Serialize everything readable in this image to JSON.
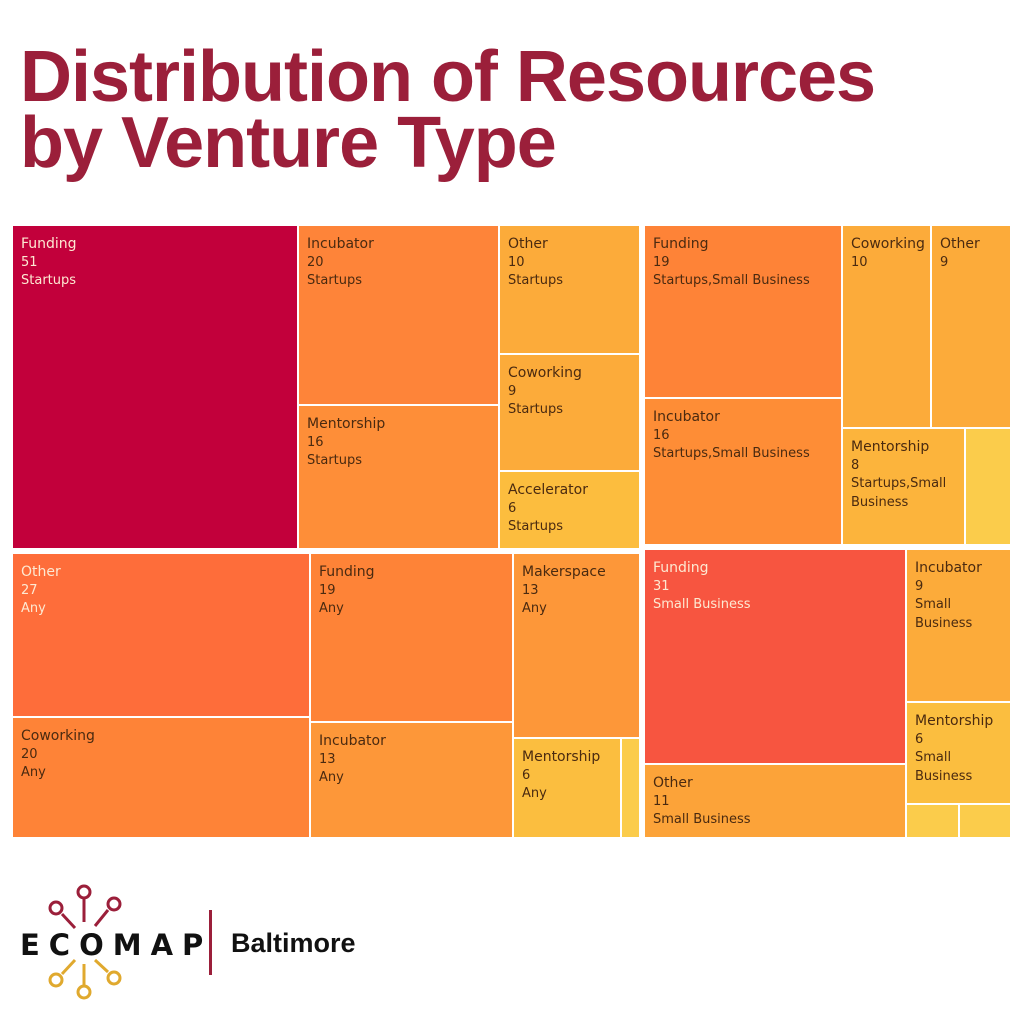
{
  "title": {
    "line1": "Distribution of Resources",
    "line2": "by Venture Type"
  },
  "brand": {
    "name": "ECOMAP",
    "city": "Baltimore",
    "colors": {
      "maroon": "#9b1f3a",
      "gold": "#e0a92e"
    }
  },
  "chart_data": {
    "type": "treemap",
    "title": "Distribution of Resources by Venture Type",
    "groups": [
      {
        "name": "Startups",
        "items": [
          {
            "label": "Funding",
            "value": 51,
            "type": "Startups",
            "color": "#c2003b",
            "text": "light"
          },
          {
            "label": "Incubator",
            "value": 20,
            "type": "Startups",
            "color": "#fe8439",
            "text": "dark"
          },
          {
            "label": "Mentorship",
            "value": 16,
            "type": "Startups",
            "color": "#fe8e38",
            "text": "dark"
          },
          {
            "label": "Other",
            "value": 10,
            "type": "Startups",
            "color": "#fcab3a",
            "text": "dark"
          },
          {
            "label": "Coworking",
            "value": 9,
            "type": "Startups",
            "color": "#fcab3a",
            "text": "dark"
          },
          {
            "label": "Accelerator",
            "value": 6,
            "type": "Startups",
            "color": "#fcbd3e",
            "text": "dark"
          }
        ]
      },
      {
        "name": "Startups,Small Business",
        "items": [
          {
            "label": "Funding",
            "value": 19,
            "type": "Startups,Small Business",
            "color": "#fe8337",
            "text": "dark"
          },
          {
            "label": "Incubator",
            "value": 16,
            "type": "Startups,Small Business",
            "color": "#fe8d36",
            "text": "dark"
          },
          {
            "label": "Coworking",
            "value": 10,
            "type": "",
            "color": "#fcab3a",
            "text": "dark"
          },
          {
            "label": "Other",
            "value": 9,
            "type": "",
            "color": "#fcab3a",
            "text": "dark"
          },
          {
            "label": "Mentorship",
            "value": 8,
            "type": "Startups,Small Business",
            "color": "#fcb43c",
            "text": "dark"
          },
          {
            "label": "",
            "value": 3,
            "type": "",
            "color": "#fbcc4b",
            "text": "dark"
          }
        ]
      },
      {
        "name": "Any",
        "items": [
          {
            "label": "Other",
            "value": 27,
            "type": "Any",
            "color": "#fe6d3a",
            "text": "light"
          },
          {
            "label": "Coworking",
            "value": 20,
            "type": "Any",
            "color": "#fe8337",
            "text": "dark"
          },
          {
            "label": "Funding",
            "value": 19,
            "type": "Any",
            "color": "#fe8337",
            "text": "dark"
          },
          {
            "label": "Incubator",
            "value": 13,
            "type": "Any",
            "color": "#fd9739",
            "text": "dark"
          },
          {
            "label": "Makerspace",
            "value": 13,
            "type": "Any",
            "color": "#fd9739",
            "text": "dark"
          },
          {
            "label": "Mentorship",
            "value": 6,
            "type": "Any",
            "color": "#fbbe3f",
            "text": "dark"
          },
          {
            "label": "",
            "value": 1,
            "type": "",
            "color": "#fbcc4b",
            "text": "dark"
          }
        ]
      },
      {
        "name": "Small Business",
        "items": [
          {
            "label": "Funding",
            "value": 31,
            "type": "Small Business",
            "color": "#f75540",
            "text": "light"
          },
          {
            "label": "Other",
            "value": 11,
            "type": "Small Business",
            "color": "#fca339",
            "text": "dark"
          },
          {
            "label": "Incubator",
            "value": 9,
            "type": "Small Business",
            "color": "#fcab3a",
            "text": "dark"
          },
          {
            "label": "Mentorship",
            "value": 6,
            "type": "Small Business",
            "color": "#fbbe3f",
            "text": "dark"
          },
          {
            "label": "",
            "value": 2,
            "type": "",
            "color": "#fbcc4b",
            "text": "dark"
          },
          {
            "label": "",
            "value": 2,
            "type": "",
            "color": "#fbcc4b",
            "text": "dark"
          }
        ]
      }
    ]
  }
}
